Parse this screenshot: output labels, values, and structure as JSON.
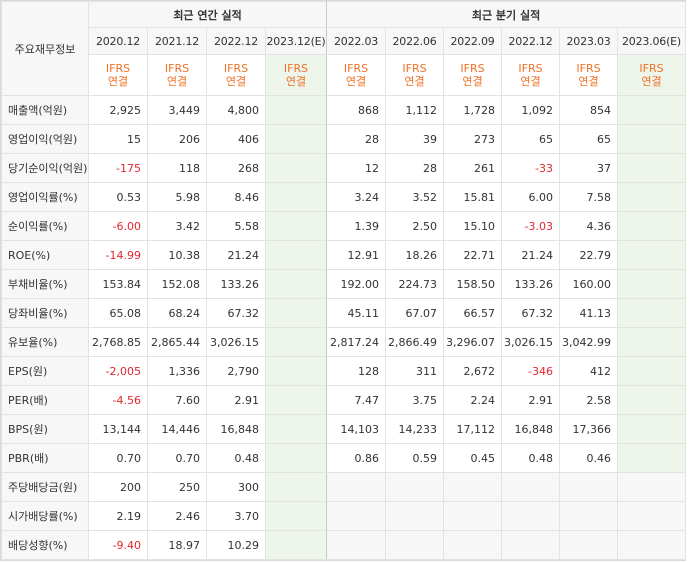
{
  "header": {
    "row_label": "주요재무정보",
    "annual_group": "최근 연간 실적",
    "quarter_group": "최근 분기 실적"
  },
  "annual_periods": [
    {
      "label": "2020.12",
      "type_top": "IFRS",
      "type_bottom": "연결",
      "estimate": false
    },
    {
      "label": "2021.12",
      "type_top": "IFRS",
      "type_bottom": "연결",
      "estimate": false
    },
    {
      "label": "2022.12",
      "type_top": "IFRS",
      "type_bottom": "연결",
      "estimate": false
    },
    {
      "label": "2023.12",
      "est_mark": "(E)",
      "type_top": "IFRS",
      "type_bottom": "연결",
      "estimate": true
    }
  ],
  "quarter_periods": [
    {
      "label": "2022.03",
      "type_top": "IFRS",
      "type_bottom": "연결",
      "estimate": false
    },
    {
      "label": "2022.06",
      "type_top": "IFRS",
      "type_bottom": "연결",
      "estimate": false
    },
    {
      "label": "2022.09",
      "type_top": "IFRS",
      "type_bottom": "연결",
      "estimate": false
    },
    {
      "label": "2022.12",
      "type_top": "IFRS",
      "type_bottom": "연결",
      "estimate": false
    },
    {
      "label": "2023.03",
      "type_top": "IFRS",
      "type_bottom": "연결",
      "estimate": false
    },
    {
      "label": "2023.06",
      "est_mark": "(E)",
      "type_top": "IFRS",
      "type_bottom": "연결",
      "estimate": true
    }
  ],
  "rows": [
    {
      "label": "매출액(억원)",
      "annual": [
        "2,925",
        "3,449",
        "4,800",
        ""
      ],
      "quarter": [
        "868",
        "1,112",
        "1,728",
        "1,092",
        "854",
        ""
      ],
      "group_start": true
    },
    {
      "label": "영업이익(억원)",
      "annual": [
        "15",
        "206",
        "406",
        ""
      ],
      "quarter": [
        "28",
        "39",
        "273",
        "65",
        "65",
        ""
      ]
    },
    {
      "label": "당기순이익(억원)",
      "annual": [
        "-175",
        "118",
        "268",
        ""
      ],
      "quarter": [
        "12",
        "28",
        "261",
        "-33",
        "37",
        ""
      ]
    },
    {
      "label": "영업이익률(%)",
      "annual": [
        "0.53",
        "5.98",
        "8.46",
        ""
      ],
      "quarter": [
        "3.24",
        "3.52",
        "15.81",
        "6.00",
        "7.58",
        ""
      ],
      "group_start": true
    },
    {
      "label": "순이익률(%)",
      "annual": [
        "-6.00",
        "3.42",
        "5.58",
        ""
      ],
      "quarter": [
        "1.39",
        "2.50",
        "15.10",
        "-3.03",
        "4.36",
        ""
      ]
    },
    {
      "label": "ROE(%)",
      "annual": [
        "-14.99",
        "10.38",
        "21.24",
        ""
      ],
      "quarter": [
        "12.91",
        "18.26",
        "22.71",
        "21.24",
        "22.79",
        ""
      ]
    },
    {
      "label": "부채비율(%)",
      "annual": [
        "153.84",
        "152.08",
        "133.26",
        ""
      ],
      "quarter": [
        "192.00",
        "224.73",
        "158.50",
        "133.26",
        "160.00",
        ""
      ],
      "group_start": true
    },
    {
      "label": "당좌비율(%)",
      "annual": [
        "65.08",
        "68.24",
        "67.32",
        ""
      ],
      "quarter": [
        "45.11",
        "67.07",
        "66.57",
        "67.32",
        "41.13",
        ""
      ]
    },
    {
      "label": "유보율(%)",
      "annual": [
        "2,768.85",
        "2,865.44",
        "3,026.15",
        ""
      ],
      "quarter": [
        "2,817.24",
        "2,866.49",
        "3,296.07",
        "3,026.15",
        "3,042.99",
        ""
      ]
    },
    {
      "label": "EPS(원)",
      "annual": [
        "-2,005",
        "1,336",
        "2,790",
        ""
      ],
      "quarter": [
        "128",
        "311",
        "2,672",
        "-346",
        "412",
        ""
      ],
      "group_start": true
    },
    {
      "label": "PER(배)",
      "annual": [
        "-4.56",
        "7.60",
        "2.91",
        ""
      ],
      "quarter": [
        "7.47",
        "3.75",
        "2.24",
        "2.91",
        "2.58",
        ""
      ]
    },
    {
      "label": "BPS(원)",
      "annual": [
        "13,144",
        "14,446",
        "16,848",
        ""
      ],
      "quarter": [
        "14,103",
        "14,233",
        "17,112",
        "16,848",
        "17,366",
        ""
      ]
    },
    {
      "label": "PBR(배)",
      "annual": [
        "0.70",
        "0.70",
        "0.48",
        ""
      ],
      "quarter": [
        "0.86",
        "0.59",
        "0.45",
        "0.48",
        "0.46",
        ""
      ]
    },
    {
      "label": "주당배당금(원)",
      "annual": [
        "200",
        "250",
        "300",
        ""
      ],
      "quarter": null,
      "group_start": true
    },
    {
      "label": "시가배당률(%)",
      "annual": [
        "2.19",
        "2.46",
        "3.70",
        ""
      ],
      "quarter": null
    },
    {
      "label": "배당성향(%)",
      "annual": [
        "-9.40",
        "18.97",
        "10.29",
        ""
      ],
      "quarter": null
    }
  ],
  "colors": {
    "negative": "#e3262e",
    "ifrs": "#f07026",
    "estimate_bg": "#eef6ec",
    "estimate_mark": "#5aa469"
  }
}
